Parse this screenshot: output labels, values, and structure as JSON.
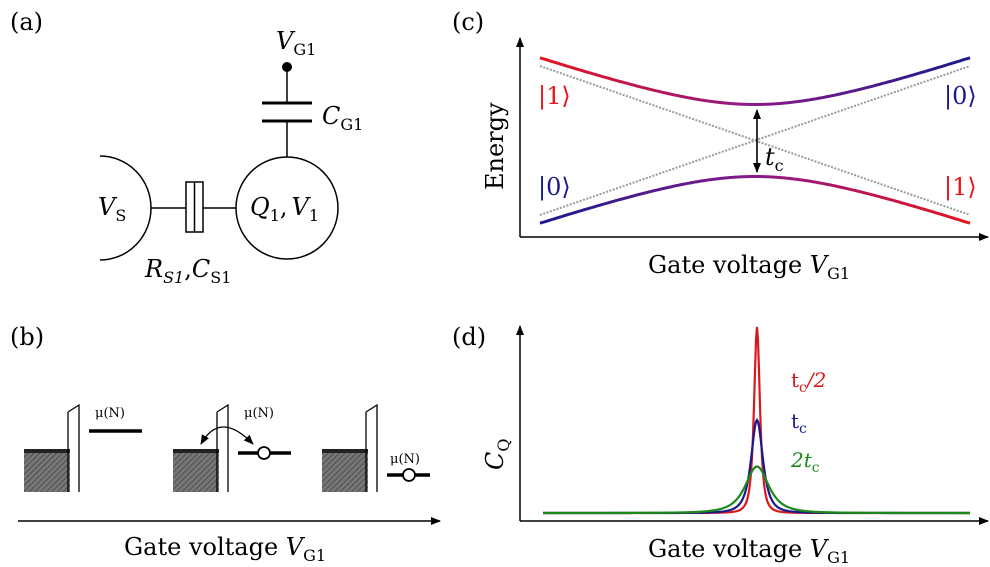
{
  "panels": {
    "a": "(a)",
    "b": "(b)",
    "c": "(c)",
    "d": "(d)"
  },
  "circuit": {
    "gate_voltage": "V",
    "gate_voltage_sub": "G1",
    "gate_capacitance": "C",
    "gate_capacitance_sub": "G1",
    "source_voltage": "V",
    "source_voltage_sub": "S",
    "dot_charge": "Q",
    "dot_charge_sub": "1",
    "dot_voltage": "V",
    "dot_voltage_sub": "1",
    "resistance": "R",
    "resistance_sub": "S1",
    "coupling_capacitance": "C",
    "coupling_capacitance_sub": "S1",
    "separator": ","
  },
  "level_diagram": {
    "mu_label": "μ(N)",
    "axis_label": "Gate voltage ",
    "axis_var": "V",
    "axis_sub": "G1"
  },
  "energy_diagram": {
    "y_label": "Energy",
    "x_label": "Gate voltage ",
    "x_var": "V",
    "x_sub": "G1",
    "state_one": "|1⟩",
    "state_zero": "|0⟩",
    "gap_label": "t",
    "gap_sub": "c",
    "colors": {
      "red": "#e8141c",
      "blue": "#1a1a8c",
      "purple": "#8a1a8a",
      "grey": "#9a9a9a"
    }
  },
  "chart_data": {
    "type": "line",
    "title": "",
    "xlabel": "Gate voltage V_G1",
    "ylabel": "C_Q",
    "series": [
      {
        "name": "t_c/2",
        "label": "t",
        "label_sub": "c",
        "label_suffix": "/2",
        "label_prefix": "",
        "color": "#d7191c",
        "width": 0.5,
        "amplitude": 1.0
      },
      {
        "name": "t_c",
        "label": "t",
        "label_sub": "c",
        "label_suffix": "",
        "label_prefix": "",
        "color": "#1a1a8c",
        "width": 1.0,
        "amplitude": 0.5
      },
      {
        "name": "2t_c",
        "label": "t",
        "label_sub": "c",
        "label_suffix": "",
        "label_prefix": "2",
        "color": "#1a8a1a",
        "width": 2.0,
        "amplitude": 0.25
      }
    ]
  }
}
